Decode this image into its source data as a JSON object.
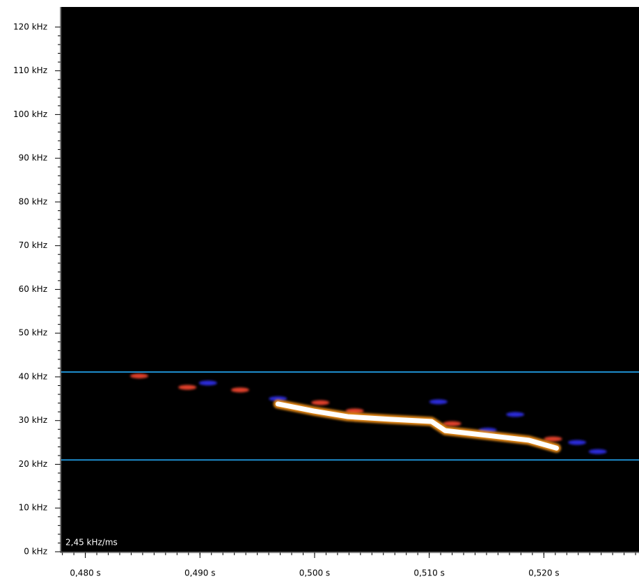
{
  "chart_data": {
    "type": "spectrogram",
    "annotation": "2,45 kHz/ms",
    "xlim": [
      0.4779,
      0.5283
    ],
    "ylim": [
      0,
      124.6
    ],
    "xticks": [
      {
        "value": 0.48,
        "label": "0,480 s"
      },
      {
        "value": 0.49,
        "label": "0,490 s"
      },
      {
        "value": 0.5,
        "label": "0,500 s"
      },
      {
        "value": 0.51,
        "label": "0,510 s"
      },
      {
        "value": 0.52,
        "label": "0,520 s"
      }
    ],
    "yticks": [
      {
        "value": 0,
        "label": "0 kHz"
      },
      {
        "value": 10,
        "label": "10 kHz"
      },
      {
        "value": 20,
        "label": "20 kHz"
      },
      {
        "value": 30,
        "label": "30 kHz"
      },
      {
        "value": 40,
        "label": "40 kHz"
      },
      {
        "value": 50,
        "label": "50 kHz"
      },
      {
        "value": 60,
        "label": "60 kHz"
      },
      {
        "value": 70,
        "label": "70 kHz"
      },
      {
        "value": 80,
        "label": "80 kHz"
      },
      {
        "value": 90,
        "label": "90 kHz"
      },
      {
        "value": 100,
        "label": "100 kHz"
      },
      {
        "value": 110,
        "label": "110 kHz"
      },
      {
        "value": 120,
        "label": "120 kHz"
      }
    ],
    "hlines": [
      41.1,
      21.0
    ],
    "hline_color": "#1e8ccc",
    "series": [
      {
        "color": "#2a2ad8",
        "style": "dots",
        "x": [
          0.4907,
          0.5108,
          0.5175,
          0.5229,
          0.5247,
          0.4968,
          0.5151
        ],
        "values": [
          38.6,
          34.3,
          31.4,
          25.0,
          22.9,
          35.0,
          27.8
        ]
      },
      {
        "color": "#e0402a",
        "style": "dots",
        "x": [
          0.4847,
          0.4889,
          0.4935,
          0.5005,
          0.5035,
          0.512,
          0.5208
        ],
        "values": [
          40.2,
          37.6,
          37.0,
          34.1,
          32.2,
          29.3,
          25.8
        ]
      },
      {
        "color": "#ffffff",
        "style": "line",
        "x": [
          0.4968,
          0.4999,
          0.5029,
          0.5066,
          0.5102,
          0.5114,
          0.5151,
          0.5187,
          0.5211
        ],
        "values": [
          33.8,
          32.2,
          30.9,
          30.3,
          29.8,
          27.7,
          26.6,
          25.5,
          23.7
        ]
      }
    ]
  }
}
